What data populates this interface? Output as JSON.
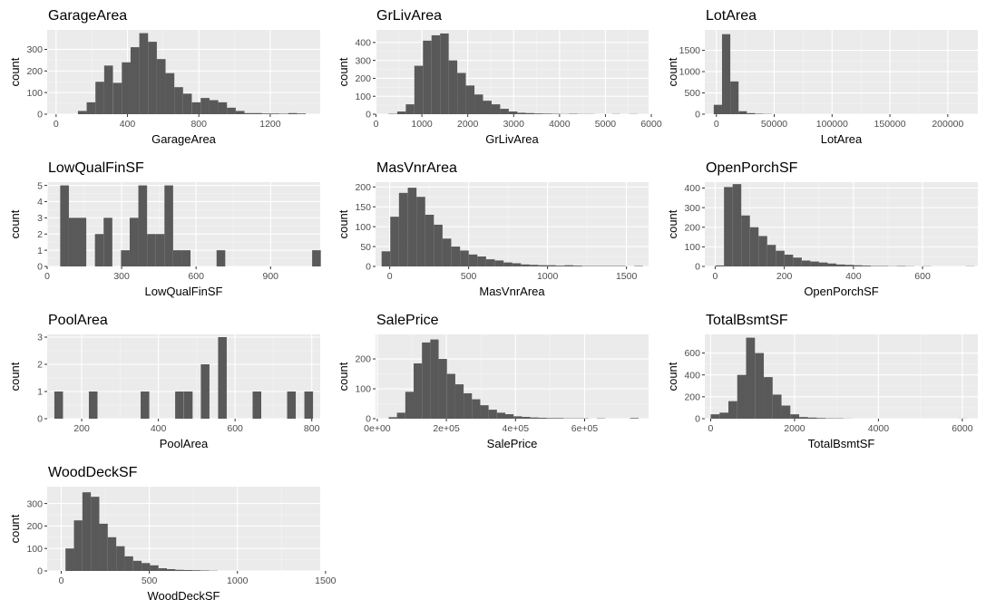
{
  "colors": {
    "panel_background": "#ebebeb",
    "grid_major": "#ffffff",
    "grid_minor": "#f5f5f5",
    "bar_fill": "#595959",
    "tick_text": "#4d4d4d",
    "text": "#000000"
  },
  "chart_data": [
    {
      "type": "bar",
      "title": "GarageArea",
      "xlabel": "GarageArea",
      "ylabel": "count",
      "xlim": [
        -50,
        1480
      ],
      "ylim": [
        0,
        390
      ],
      "xticks": [
        0,
        400,
        800,
        1200
      ],
      "xtick_labels": [
        "0",
        "400",
        "800",
        "1200"
      ],
      "yticks": [
        0,
        100,
        200,
        300
      ],
      "ytick_labels": [
        "0",
        "100",
        "200",
        "300"
      ],
      "bin_width": 49.1,
      "bin_centers": [
        147,
        196,
        245,
        294,
        344,
        393,
        442,
        491,
        540,
        589,
        638,
        687,
        736,
        786,
        835,
        884,
        933,
        982,
        1031,
        1080,
        1129,
        1178,
        1227,
        1277,
        1326,
        1375
      ],
      "counts": [
        15,
        55,
        150,
        225,
        145,
        240,
        310,
        375,
        335,
        255,
        190,
        125,
        95,
        55,
        75,
        65,
        55,
        30,
        15,
        5,
        5,
        3,
        3,
        2,
        5,
        3
      ],
      "grid": true,
      "legend": "none"
    },
    {
      "type": "bar",
      "title": "GrLivArea",
      "xlabel": "GrLivArea",
      "ylabel": "count",
      "xlim": [
        -10,
        5940
      ],
      "ylim": [
        0,
        470
      ],
      "xticks": [
        0,
        1000,
        2000,
        3000,
        4000,
        5000,
        6000
      ],
      "xtick_labels": [
        "0",
        "1000",
        "2000",
        "3000",
        "4000",
        "5000",
        "6000"
      ],
      "yticks": [
        0,
        100,
        200,
        300,
        400
      ],
      "ytick_labels": [
        "0",
        "100",
        "200",
        "300",
        "400"
      ],
      "bin_width": 187,
      "bin_centers": [
        369,
        556,
        743,
        930,
        1117,
        1304,
        1491,
        1678,
        1865,
        2052,
        2239,
        2426,
        2613,
        2800,
        2987,
        3174,
        3361,
        3548,
        3735,
        3922,
        4109,
        4296,
        4483,
        4670,
        4857,
        5044,
        5231,
        5418,
        5605
      ],
      "counts": [
        2,
        15,
        55,
        270,
        410,
        440,
        450,
        300,
        230,
        160,
        110,
        75,
        55,
        30,
        15,
        8,
        6,
        4,
        3,
        2,
        1,
        2,
        1,
        1,
        0,
        0,
        1,
        0,
        1
      ],
      "grid": true,
      "legend": "none"
    },
    {
      "type": "bar",
      "title": "LotArea",
      "xlabel": "LotArea",
      "ylabel": "count",
      "xlim": [
        -10000,
        226000
      ],
      "ylim": [
        0,
        1980
      ],
      "xticks": [
        0,
        50000,
        100000,
        150000,
        200000
      ],
      "xtick_labels": [
        "0",
        "50000",
        "100000",
        "150000",
        "200000"
      ],
      "yticks": [
        0,
        500,
        1000,
        1500
      ],
      "ytick_labels": [
        "0",
        "500",
        "1000",
        "1500"
      ],
      "bin_width": 7150,
      "bin_centers": [
        1300,
        8450,
        15600,
        22750,
        29900,
        37050,
        44200
      ],
      "counts": [
        220,
        1880,
        770,
        70,
        25,
        10,
        5
      ],
      "grid": true,
      "legend": "none"
    },
    {
      "type": "bar",
      "title": "LowQualFinSF",
      "xlabel": "LowQualFinSF",
      "ylabel": "count",
      "xlim": [
        0,
        1100
      ],
      "ylim": [
        0,
        5.2
      ],
      "xticks": [
        0,
        300,
        600,
        900
      ],
      "xtick_labels": [
        "0",
        "300",
        "600",
        "900"
      ],
      "yticks": [
        0,
        1,
        2,
        3,
        4,
        5
      ],
      "ytick_labels": [
        "0",
        "1",
        "2",
        "3",
        "4",
        "5"
      ],
      "bin_width": 35,
      "bin_centers": [
        70,
        105,
        140,
        175,
        210,
        245,
        280,
        315,
        350,
        385,
        420,
        455,
        490,
        525,
        560,
        595,
        630,
        665,
        700,
        735,
        770,
        805,
        840,
        875,
        910,
        945,
        980,
        1015,
        1050,
        1085
      ],
      "counts": [
        5,
        3,
        3,
        0,
        2,
        3,
        0,
        1,
        3,
        5,
        2,
        2,
        5,
        1,
        1,
        0,
        0,
        0,
        1,
        0,
        0,
        0,
        0,
        0,
        0,
        0,
        0,
        0,
        0,
        1
      ],
      "grid": true,
      "legend": "none"
    },
    {
      "type": "bar",
      "title": "MasVnrArea",
      "xlabel": "MasVnrArea",
      "ylabel": "count",
      "xlim": [
        -90,
        1640
      ],
      "ylim": [
        0,
        212
      ],
      "xticks": [
        0,
        500,
        1000,
        1500
      ],
      "xtick_labels": [
        "0",
        "500",
        "1000",
        "1500"
      ],
      "yticks": [
        0,
        50,
        100,
        150,
        200
      ],
      "ytick_labels": [
        "0",
        "50",
        "100",
        "150",
        "200"
      ],
      "bin_width": 55.2,
      "bin_centers": [
        -24,
        31,
        86,
        142,
        197,
        252,
        307,
        362,
        418,
        473,
        528,
        583,
        638,
        694,
        749,
        804,
        859,
        914,
        970,
        1025,
        1080,
        1135,
        1190,
        1246,
        1301,
        1356,
        1411,
        1466,
        1522,
        1577
      ],
      "counts": [
        38,
        125,
        185,
        198,
        175,
        130,
        105,
        70,
        50,
        40,
        30,
        25,
        18,
        15,
        10,
        8,
        5,
        4,
        3,
        3,
        2,
        3,
        2,
        1,
        1,
        1,
        1,
        1,
        0,
        1
      ],
      "grid": true,
      "legend": "none"
    },
    {
      "type": "bar",
      "title": "OpenPorchSF",
      "xlabel": "OpenPorchSF",
      "ylabel": "count",
      "xlim": [
        -30,
        760
      ],
      "ylim": [
        0,
        430
      ],
      "xticks": [
        0,
        200,
        400,
        600
      ],
      "xtick_labels": [
        "0",
        "200",
        "400",
        "600"
      ],
      "yticks": [
        0,
        100,
        200,
        300,
        400
      ],
      "ytick_labels": [
        "0",
        "100",
        "200",
        "300",
        "400"
      ],
      "bin_width": 25,
      "bin_centers": [
        13,
        38,
        63,
        88,
        113,
        138,
        163,
        188,
        213,
        238,
        263,
        288,
        313,
        338,
        363,
        388,
        413,
        438,
        463,
        488,
        513,
        538,
        563,
        588,
        613,
        638,
        663,
        688,
        713,
        738
      ],
      "counts": [
        5,
        405,
        420,
        260,
        200,
        155,
        110,
        80,
        60,
        45,
        30,
        25,
        20,
        15,
        10,
        8,
        6,
        4,
        2,
        2,
        1,
        2,
        1,
        0,
        1,
        0,
        0,
        0,
        0,
        1
      ],
      "grid": true,
      "legend": "none"
    },
    {
      "type": "bar",
      "title": "PoolArea",
      "xlabel": "PoolArea",
      "ylabel": "count",
      "xlim": [
        110,
        822
      ],
      "ylim": [
        0,
        3.1
      ],
      "xticks": [
        200,
        400,
        600,
        800
      ],
      "xtick_labels": [
        "200",
        "400",
        "600",
        "800"
      ],
      "yticks": [
        0,
        1,
        2,
        3
      ],
      "ytick_labels": [
        "0",
        "1",
        "2",
        "3"
      ],
      "bin_width": 22.5,
      "bin_centers": [
        140,
        230,
        365,
        455,
        478,
        522,
        567,
        657,
        747,
        792
      ],
      "counts": [
        1,
        1,
        1,
        1,
        1,
        2,
        3,
        1,
        1,
        1
      ],
      "grid": true,
      "legend": "none"
    },
    {
      "type": "bar",
      "title": "SalePrice",
      "xlabel": "SalePrice",
      "ylabel": "count",
      "xlim": [
        -5000,
        785000
      ],
      "ylim": [
        0,
        282
      ],
      "xticks": [
        0,
        200000,
        400000,
        600000
      ],
      "xtick_labels": [
        "0e+00",
        "2e+05",
        "4e+05",
        "6e+05"
      ],
      "yticks": [
        0,
        100,
        200
      ],
      "ytick_labels": [
        "0",
        "100",
        "200"
      ],
      "bin_width": 24100,
      "bin_centers": [
        45000,
        69100,
        93200,
        117300,
        141400,
        165500,
        189600,
        213700,
        237800,
        261900,
        286000,
        310100,
        334200,
        358300,
        382400,
        406500,
        430600,
        454700,
        478800,
        502900,
        527000,
        551100,
        575200,
        599300,
        623400,
        647500,
        671600,
        695700,
        719800,
        743900
      ],
      "counts": [
        5,
        20,
        90,
        185,
        255,
        265,
        200,
        150,
        115,
        85,
        65,
        45,
        30,
        20,
        15,
        8,
        6,
        4,
        3,
        2,
        2,
        1,
        1,
        1,
        0,
        1,
        0,
        0,
        0,
        2
      ],
      "grid": true,
      "legend": "none"
    },
    {
      "type": "bar",
      "title": "TotalBsmtSF",
      "xlabel": "TotalBsmtSF",
      "ylabel": "count",
      "xlim": [
        -140,
        6370
      ],
      "ylim": [
        0,
        770
      ],
      "xticks": [
        0,
        2000,
        4000,
        6000
      ],
      "xtick_labels": [
        "0",
        "2000",
        "4000",
        "6000"
      ],
      "yticks": [
        0,
        200,
        400,
        600
      ],
      "ytick_labels": [
        "0",
        "200",
        "400",
        "600"
      ],
      "bin_width": 211,
      "bin_centers": [
        106,
        317,
        528,
        739,
        950,
        1161,
        1372,
        1583,
        1794,
        2005,
        2216,
        2427,
        2638,
        2849,
        3060,
        3271,
        3482,
        3693,
        3904,
        4115,
        4326,
        4537,
        4748,
        4959,
        5170,
        5381,
        5592,
        5803,
        6014
      ],
      "counts": [
        40,
        55,
        160,
        400,
        740,
        600,
        380,
        220,
        120,
        40,
        15,
        10,
        6,
        3,
        3,
        1,
        0,
        0,
        0,
        0,
        0,
        0,
        0,
        0,
        0,
        0,
        0,
        0,
        1
      ],
      "grid": true,
      "legend": "none"
    },
    {
      "type": "bar",
      "title": "WoodDeckSF",
      "xlabel": "WoodDeckSF",
      "ylabel": "count",
      "xlim": [
        -80,
        1470
      ],
      "ylim": [
        0,
        375
      ],
      "xticks": [
        0,
        500,
        1000,
        1500
      ],
      "xtick_labels": [
        "0",
        "500",
        "1000",
        "1500"
      ],
      "yticks": [
        0,
        100,
        200,
        300
      ],
      "ytick_labels": [
        "0",
        "100",
        "200",
        "300"
      ],
      "bin_width": 48,
      "bin_centers": [
        48,
        96,
        144,
        192,
        240,
        288,
        336,
        384,
        432,
        480,
        528,
        576,
        624,
        672,
        720,
        768,
        816,
        864
      ],
      "counts": [
        100,
        225,
        350,
        330,
        210,
        150,
        110,
        65,
        45,
        35,
        25,
        12,
        8,
        5,
        4,
        3,
        2,
        1
      ],
      "grid": true,
      "legend": "none"
    }
  ]
}
